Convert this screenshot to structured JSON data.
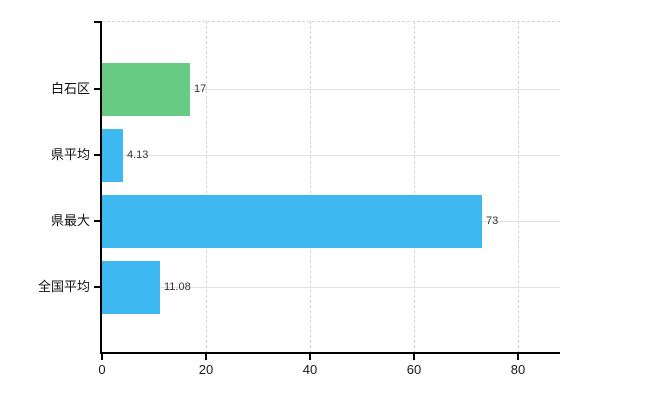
{
  "chart_data": {
    "type": "bar",
    "orientation": "horizontal",
    "title": "",
    "xlabel": "",
    "ylabel": "",
    "categories": [
      "白石区",
      "県平均",
      "県最大",
      "全国平均"
    ],
    "values": [
      17,
      4.13,
      73,
      11.08
    ],
    "value_labels": [
      "17",
      "4.13",
      "73",
      "11.08"
    ],
    "bar_colors": [
      "#68cb83",
      "#3db8f0",
      "#3db8f0",
      "#3db8f0"
    ],
    "x_ticks": [
      0,
      20,
      40,
      60,
      80
    ],
    "x_tick_labels": [
      "0",
      "20",
      "40",
      "60",
      "80"
    ],
    "xlim": [
      0,
      88
    ],
    "grid": true,
    "legend": false,
    "colors": {
      "highlight_bar": "#68cb83",
      "default_bar": "#3db8f0",
      "h_gridline": "#dce4dc",
      "v_gridline": "#d8d2da",
      "top_border": "#d8d2da",
      "axis": "#000000",
      "category_label": "#111111",
      "tick_label": "#1a1a1a",
      "value_label": "#333333",
      "background": "#ffffff"
    }
  }
}
